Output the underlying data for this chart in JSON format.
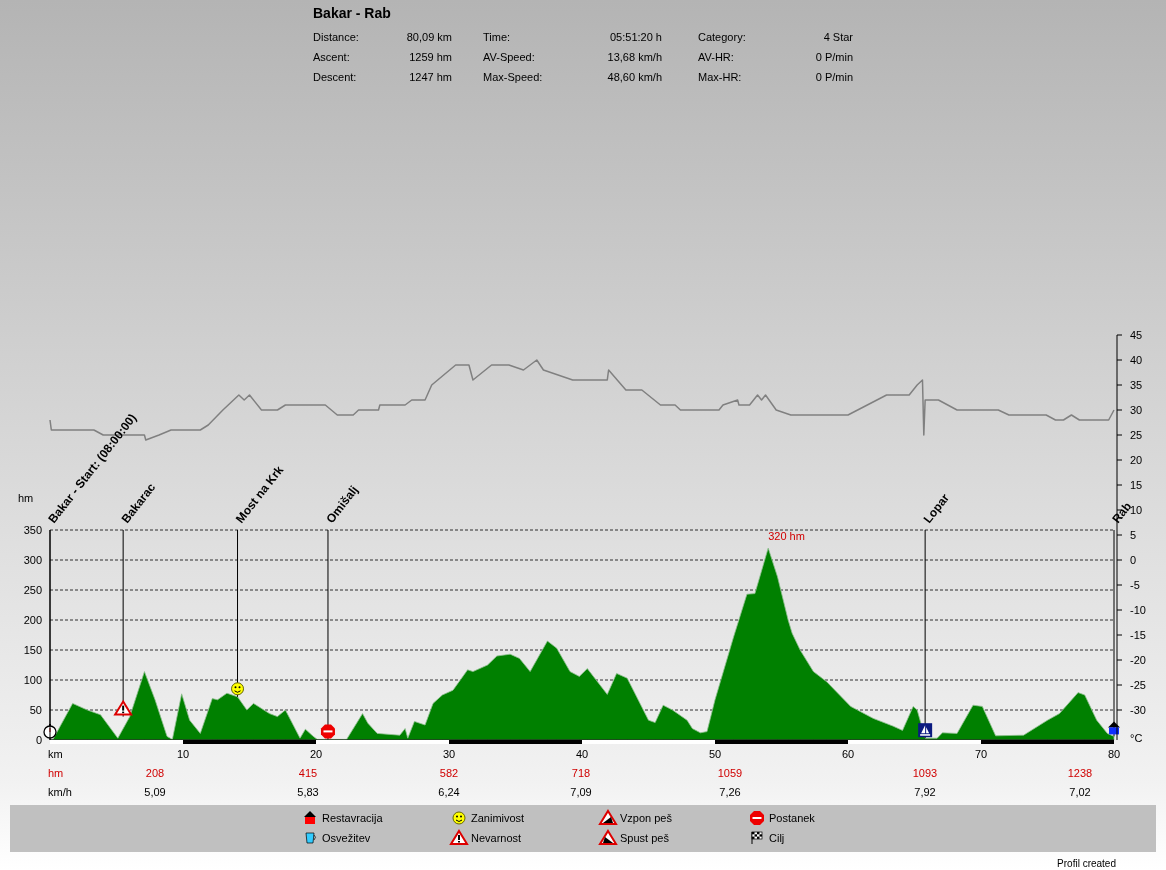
{
  "chart_data": {
    "type": "area",
    "title": "Bakar - Rab",
    "xlabel": "km",
    "ylabel": "hm",
    "y2label": "°C",
    "xlim": [
      0,
      80
    ],
    "xticks": [
      10,
      20,
      30,
      40,
      50,
      60,
      70,
      80
    ],
    "ylim": [
      0,
      675
    ],
    "yticks": [
      0,
      50,
      100,
      150,
      200,
      250,
      300,
      350
    ],
    "y2lim": [
      -36,
      45
    ],
    "y2ticks": [
      -30,
      -25,
      -20,
      -15,
      -10,
      -5,
      0,
      5,
      10,
      15,
      20,
      25,
      30,
      35,
      40,
      45
    ],
    "grid": "y",
    "series": [
      {
        "color": "#008000",
        "x": [
          0,
          0.2,
          1.7,
          2.8,
          3.8,
          5.1,
          6.0,
          7.1,
          7.9,
          8.8,
          9.2,
          9.9,
          10.5,
          11.3,
          12.2,
          12.6,
          13.3,
          14.1,
          14.8,
          15.3,
          16.5,
          17.1,
          17.7,
          18.8,
          19.2,
          19.8,
          20.1,
          22.3,
          23.5,
          23.9,
          24.6,
          26.3,
          26.7,
          26.9,
          27.4,
          28.2,
          28.8,
          29.5,
          30.3,
          31.4,
          31.8,
          32.9,
          33.6,
          34.6,
          35.3,
          36.1,
          37.4,
          38.1,
          39.1,
          39.8,
          40.4,
          41.9,
          42.6,
          43.4,
          45.0,
          45.5,
          46.1,
          46.8,
          47.9,
          48.3,
          48.9,
          49.4,
          50.0,
          51.4,
          52.4,
          53.0,
          54.0,
          54.7,
          55.5,
          55.8,
          56.4,
          57.4,
          58.4,
          60.2,
          61.9,
          63.4,
          64.1,
          64.9,
          65.2,
          65.8,
          66.7,
          67.1,
          68.2,
          69.4,
          70.1,
          71.1,
          73.2,
          75.0,
          75.9,
          77.3,
          77.8,
          78.7,
          79.5,
          80.0
        ],
        "values": [
          0,
          0,
          61,
          50,
          42,
          3,
          39,
          114,
          67,
          6,
          1,
          77,
          33,
          11,
          69,
          67,
          78,
          72,
          50,
          61,
          44,
          39,
          50,
          3,
          18,
          6,
          1,
          1,
          44,
          28,
          11,
          8,
          19,
          3,
          31,
          25,
          61,
          75,
          83,
          117,
          114,
          125,
          140,
          143,
          136,
          114,
          165,
          153,
          114,
          106,
          119,
          76,
          111,
          103,
          33,
          29,
          58,
          50,
          33,
          19,
          12,
          14,
          67,
          172,
          243,
          244,
          320,
          272,
          200,
          178,
          150,
          114,
          97,
          56,
          36,
          23,
          16,
          56,
          50,
          3,
          3,
          12,
          11,
          58,
          56,
          7,
          8,
          33,
          44,
          79,
          75,
          33,
          11,
          6
        ]
      },
      {
        "type": "line",
        "axis": "y2",
        "color": "#808080",
        "x": [
          0,
          0.1,
          3.3,
          4.0,
          7.1,
          7.2,
          8.2,
          9.1,
          11.3,
          11.9,
          13.0,
          14.2,
          14.6,
          15.0,
          15.9,
          17.1,
          17.7,
          20.7,
          21.6,
          22.8,
          23.2,
          24.7,
          24.8,
          26.7,
          27.2,
          28.2,
          28.7,
          30.5,
          31.5,
          31.8,
          33.2,
          34.5,
          35.6,
          36.6,
          37.1,
          39.3,
          41.9,
          42.0,
          43.3,
          44.5,
          45.9,
          47.0,
          47.4,
          50.3,
          50.6,
          51.7,
          51.8,
          52.6,
          53.2,
          53.5,
          53.8,
          54.6,
          55.7,
          60.0,
          62.9,
          64.6,
          65.2,
          65.6,
          65.7,
          65.8,
          66.8,
          68.2,
          71.3,
          72.1,
          74.9,
          75.6,
          76.2,
          76.8,
          77.4,
          79.6,
          80.0
        ],
        "values": [
          28,
          26,
          26,
          25,
          25,
          24,
          25,
          26,
          26,
          27,
          30,
          33,
          32,
          33,
          30,
          30,
          31,
          31,
          29,
          29,
          30,
          30,
          31,
          31,
          32,
          32,
          35,
          39,
          39,
          36,
          39,
          39,
          38,
          40,
          38,
          36,
          36,
          38,
          34,
          34,
          31,
          31,
          30,
          30,
          31,
          32,
          31,
          31,
          33,
          32,
          33,
          30,
          29,
          29,
          33,
          33,
          35,
          36,
          25,
          32,
          32,
          30,
          30,
          29,
          29,
          28,
          28,
          29,
          28,
          28,
          30
        ]
      }
    ],
    "ref_lines": [
      {
        "axis": "x",
        "value": 0,
        "label": "Bakar - Start: (08:00:00)",
        "color": "#000000"
      },
      {
        "axis": "x",
        "value": 5.5,
        "label": "Bakarac",
        "color": "#000000"
      },
      {
        "axis": "x",
        "value": 14.1,
        "label": "Most na Krk",
        "color": "#000000"
      },
      {
        "axis": "x",
        "value": 20.9,
        "label": "Omišalj",
        "color": "#000000"
      },
      {
        "axis": "x",
        "value": 65.8,
        "label": "Lopar",
        "color": "#000000"
      },
      {
        "axis": "x",
        "value": 80,
        "label": "Rab",
        "color": "#000000"
      }
    ],
    "annotations": [
      "Distance:",
      "80,09 km",
      "Time:",
      "05:51:20 h",
      "Category:",
      "4 Star",
      "Ascent:",
      "1259 hm",
      "AV-Speed:",
      "13,68 km/h",
      "AV-HR:",
      "0 P/min",
      "Descent:",
      "1247 hm",
      "Max-Speed:",
      "48,60 km/h",
      "Max-HR:",
      "0 P/min",
      {
        "text": "320 hm",
        "x": 54.0,
        "y": 320
      },
      "hm",
      "208",
      "415",
      "582",
      "718",
      "1059",
      "1093",
      "1238",
      "km/h",
      "5,09",
      "5,83",
      "6,24",
      "7,09",
      "7,26",
      "7,92",
      "7,02",
      "Restavracija",
      "Osvežitev",
      "Zanimivost",
      "Nevarnost",
      "Vzpon peš",
      "Spust peš",
      "Postanek",
      "Cilj",
      "Profil created"
    ]
  }
}
